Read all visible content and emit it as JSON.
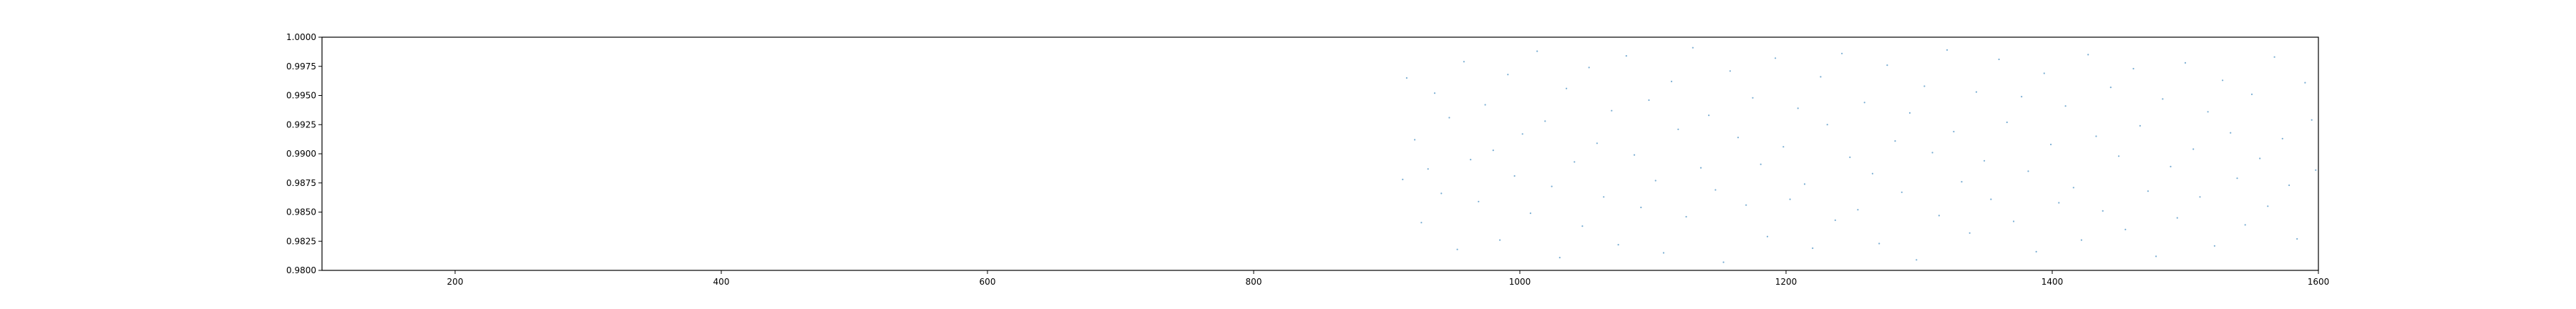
{
  "chart_data": {
    "type": "scatter",
    "title": "",
    "xlabel": "",
    "ylabel": "",
    "xlim": [
      100,
      1600
    ],
    "ylim": [
      0.98,
      1.0
    ],
    "grid": false,
    "legend": "none",
    "x_ticks": [
      {
        "value": 200,
        "label": "200"
      },
      {
        "value": 400,
        "label": "400"
      },
      {
        "value": 600,
        "label": "600"
      },
      {
        "value": 800,
        "label": "800"
      },
      {
        "value": 1000,
        "label": "1000"
      },
      {
        "value": 1200,
        "label": "1200"
      },
      {
        "value": 1400,
        "label": "1400"
      },
      {
        "value": 1600,
        "label": "1600"
      }
    ],
    "y_ticks": [
      {
        "value": 0.98,
        "label": "0.9800"
      },
      {
        "value": 0.9825,
        "label": "0.9825"
      },
      {
        "value": 0.985,
        "label": "0.9850"
      },
      {
        "value": 0.9875,
        "label": "0.9875"
      },
      {
        "value": 0.99,
        "label": "0.9900"
      },
      {
        "value": 0.9925,
        "label": "0.9925"
      },
      {
        "value": 0.995,
        "label": "0.9950"
      },
      {
        "value": 0.9975,
        "label": "0.9975"
      },
      {
        "value": 1.0,
        "label": "1.0000"
      }
    ],
    "series": [
      {
        "color": "#1f77b4",
        "points": [
          [
            912,
            0.9878
          ],
          [
            915,
            0.9965
          ],
          [
            921,
            0.9912
          ],
          [
            926,
            0.9841
          ],
          [
            931,
            0.9887
          ],
          [
            936,
            0.9952
          ],
          [
            941,
            0.9866
          ],
          [
            947,
            0.9931
          ],
          [
            953,
            0.9818
          ],
          [
            958,
            0.9979
          ],
          [
            963,
            0.9895
          ],
          [
            969,
            0.9859
          ],
          [
            974,
            0.9942
          ],
          [
            980,
            0.9903
          ],
          [
            985,
            0.9826
          ],
          [
            991,
            0.9968
          ],
          [
            996,
            0.9881
          ],
          [
            1002,
            0.9917
          ],
          [
            1008,
            0.9849
          ],
          [
            1013,
            0.9988
          ],
          [
            1019,
            0.9928
          ],
          [
            1024,
            0.9872
          ],
          [
            1030,
            0.9811
          ],
          [
            1035,
            0.9956
          ],
          [
            1041,
            0.9893
          ],
          [
            1047,
            0.9838
          ],
          [
            1052,
            0.9974
          ],
          [
            1058,
            0.9909
          ],
          [
            1063,
            0.9863
          ],
          [
            1069,
            0.9937
          ],
          [
            1074,
            0.9822
          ],
          [
            1080,
            0.9984
          ],
          [
            1086,
            0.9899
          ],
          [
            1091,
            0.9854
          ],
          [
            1097,
            0.9946
          ],
          [
            1102,
            0.9877
          ],
          [
            1108,
            0.9815
          ],
          [
            1114,
            0.9962
          ],
          [
            1119,
            0.9921
          ],
          [
            1125,
            0.9846
          ],
          [
            1130,
            0.9991
          ],
          [
            1136,
            0.9888
          ],
          [
            1142,
            0.9933
          ],
          [
            1147,
            0.9869
          ],
          [
            1153,
            0.9807
          ],
          [
            1158,
            0.9971
          ],
          [
            1164,
            0.9914
          ],
          [
            1170,
            0.9856
          ],
          [
            1175,
            0.9948
          ],
          [
            1181,
            0.9891
          ],
          [
            1186,
            0.9829
          ],
          [
            1192,
            0.9982
          ],
          [
            1198,
            0.9906
          ],
          [
            1203,
            0.9861
          ],
          [
            1209,
            0.9939
          ],
          [
            1214,
            0.9874
          ],
          [
            1220,
            0.9819
          ],
          [
            1226,
            0.9966
          ],
          [
            1231,
            0.9925
          ],
          [
            1237,
            0.9843
          ],
          [
            1242,
            0.9986
          ],
          [
            1248,
            0.9897
          ],
          [
            1254,
            0.9852
          ],
          [
            1259,
            0.9944
          ],
          [
            1265,
            0.9883
          ],
          [
            1270,
            0.9823
          ],
          [
            1276,
            0.9976
          ],
          [
            1282,
            0.9911
          ],
          [
            1287,
            0.9867
          ],
          [
            1293,
            0.9935
          ],
          [
            1298,
            0.9809
          ],
          [
            1304,
            0.9958
          ],
          [
            1310,
            0.9901
          ],
          [
            1315,
            0.9847
          ],
          [
            1321,
            0.9989
          ],
          [
            1326,
            0.9919
          ],
          [
            1332,
            0.9876
          ],
          [
            1338,
            0.9832
          ],
          [
            1343,
            0.9953
          ],
          [
            1349,
            0.9894
          ],
          [
            1354,
            0.9861
          ],
          [
            1360,
            0.9981
          ],
          [
            1366,
            0.9927
          ],
          [
            1371,
            0.9842
          ],
          [
            1377,
            0.9949
          ],
          [
            1382,
            0.9885
          ],
          [
            1388,
            0.9816
          ],
          [
            1394,
            0.9969
          ],
          [
            1399,
            0.9908
          ],
          [
            1405,
            0.9858
          ],
          [
            1410,
            0.9941
          ],
          [
            1416,
            0.9871
          ],
          [
            1422,
            0.9826
          ],
          [
            1427,
            0.9985
          ],
          [
            1433,
            0.9915
          ],
          [
            1438,
            0.9851
          ],
          [
            1444,
            0.9957
          ],
          [
            1450,
            0.9898
          ],
          [
            1455,
            0.9835
          ],
          [
            1461,
            0.9973
          ],
          [
            1466,
            0.9924
          ],
          [
            1472,
            0.9868
          ],
          [
            1478,
            0.9812
          ],
          [
            1483,
            0.9947
          ],
          [
            1489,
            0.9889
          ],
          [
            1494,
            0.9845
          ],
          [
            1500,
            0.9978
          ],
          [
            1506,
            0.9904
          ],
          [
            1511,
            0.9863
          ],
          [
            1517,
            0.9936
          ],
          [
            1522,
            0.9821
          ],
          [
            1528,
            0.9963
          ],
          [
            1534,
            0.9918
          ],
          [
            1539,
            0.9879
          ],
          [
            1545,
            0.9839
          ],
          [
            1550,
            0.9951
          ],
          [
            1556,
            0.9896
          ],
          [
            1562,
            0.9855
          ],
          [
            1567,
            0.9983
          ],
          [
            1573,
            0.9913
          ],
          [
            1578,
            0.9873
          ],
          [
            1584,
            0.9827
          ],
          [
            1590,
            0.9961
          ],
          [
            1595,
            0.9929
          ],
          [
            1598,
            0.9886
          ]
        ]
      }
    ]
  }
}
